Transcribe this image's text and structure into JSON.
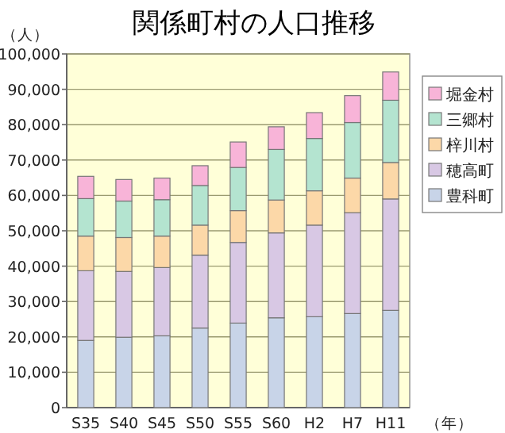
{
  "chart_data": {
    "type": "bar",
    "title": "関係町村の人口推移",
    "ylabel": "（人）",
    "xlabel": "（年）",
    "stacked": true,
    "categories": [
      "S35",
      "S40",
      "S45",
      "S50",
      "S55",
      "S60",
      "H2",
      "H7",
      "H11"
    ],
    "series": [
      {
        "name": "豊科町",
        "color": "#c8d4e8",
        "values": [
          19000,
          19900,
          20300,
          22500,
          23900,
          25400,
          25700,
          26600,
          27500
        ]
      },
      {
        "name": "穂高町",
        "color": "#d8c8e4",
        "values": [
          19700,
          18600,
          19300,
          20600,
          22800,
          24000,
          25900,
          28500,
          31500
        ]
      },
      {
        "name": "梓川村",
        "color": "#fcd8a8",
        "values": [
          9800,
          9600,
          8900,
          8500,
          9000,
          9300,
          9700,
          9800,
          10300
        ]
      },
      {
        "name": "三郷村",
        "color": "#b4e4d0",
        "values": [
          10600,
          10300,
          10300,
          11200,
          12200,
          14300,
          14800,
          15700,
          17600
        ]
      },
      {
        "name": "堀金村",
        "color": "#f8b4d8",
        "values": [
          6300,
          6100,
          6100,
          5600,
          7200,
          6400,
          7300,
          7600,
          8000
        ]
      }
    ],
    "ylim": [
      0,
      100000
    ],
    "yticks": [
      {
        "value": 0,
        "label": "0"
      },
      {
        "value": 10000,
        "label": "10,000"
      },
      {
        "value": 20000,
        "label": "20,000"
      },
      {
        "value": 30000,
        "label": "30,000"
      },
      {
        "value": 40000,
        "label": "40,000"
      },
      {
        "value": 50000,
        "label": "50,000"
      },
      {
        "value": 60000,
        "label": "60,000"
      },
      {
        "value": 70000,
        "label": "70,000"
      },
      {
        "value": 80000,
        "label": "80,000"
      },
      {
        "value": 90000,
        "label": "90,000"
      },
      {
        "value": 100000,
        "label": "100,000"
      }
    ],
    "grid": "y",
    "legend": "right"
  }
}
